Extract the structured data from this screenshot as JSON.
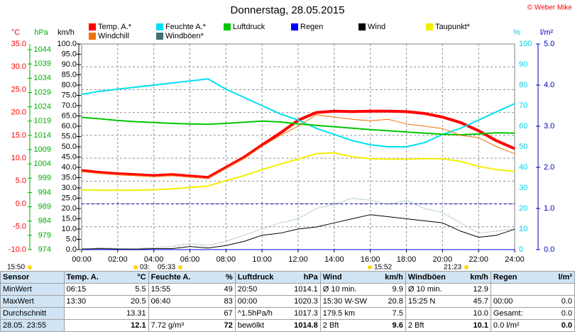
{
  "chart_data": {
    "type": "line",
    "title": "Donnerstag, 28.05.2015",
    "copyright": "© Weber Mike",
    "x": [
      0,
      1,
      2,
      3,
      4,
      5,
      6,
      7,
      8,
      9,
      10,
      11,
      12,
      13,
      14,
      15,
      16,
      17,
      18,
      19,
      20,
      21,
      22,
      23,
      24
    ],
    "xlim": [
      0,
      24
    ],
    "xticks": [
      {
        "value": 0,
        "label": "00:00"
      },
      {
        "value": 2,
        "label": "02:00"
      },
      {
        "value": 4,
        "label": "04:00"
      },
      {
        "value": 6,
        "label": "06:00"
      },
      {
        "value": 8,
        "label": "08:00"
      },
      {
        "value": 10,
        "label": "10:00"
      },
      {
        "value": 12,
        "label": "12:00"
      },
      {
        "value": 14,
        "label": "14:00"
      },
      {
        "value": 16,
        "label": "16:00"
      },
      {
        "value": 18,
        "label": "18:00"
      },
      {
        "value": 20,
        "label": "20:00"
      },
      {
        "value": 22,
        "label": "22:00"
      },
      {
        "value": 24,
        "label": "24:00"
      }
    ],
    "grid": true,
    "axes": {
      "temp": {
        "label": "°C",
        "color": "#ff0000",
        "ylim": [
          -10,
          35
        ],
        "yticks": [
          {
            "value": -10,
            "label": "-10.0"
          },
          {
            "value": -5,
            "label": "-5.0"
          },
          {
            "value": 0,
            "label": "0.0"
          },
          {
            "value": 5,
            "label": "5.0"
          },
          {
            "value": 10,
            "label": "10.0"
          },
          {
            "value": 15,
            "label": "15.0"
          },
          {
            "value": 20,
            "label": "20.0"
          },
          {
            "value": 25,
            "label": "25.0"
          },
          {
            "value": 30,
            "label": "30.0"
          },
          {
            "value": 35,
            "label": "35.0"
          }
        ]
      },
      "press": {
        "label": "hPa",
        "color": "#00b000",
        "ylim": [
          974,
          1046
        ],
        "yticks": [
          974,
          979,
          984,
          989,
          994,
          999,
          1004,
          1009,
          1014,
          1019,
          1024,
          1029,
          1034,
          1039,
          1044
        ]
      },
      "wind": {
        "label": "km/h",
        "color": "#000000",
        "ylim": [
          0,
          100
        ],
        "yticks": [
          {
            "value": 0,
            "label": "0.0"
          },
          {
            "value": 5,
            "label": "5.0"
          },
          {
            "value": 10,
            "label": "10.0"
          },
          {
            "value": 15,
            "label": "15.0"
          },
          {
            "value": 20,
            "label": "20.0"
          },
          {
            "value": 25,
            "label": "25.0"
          },
          {
            "value": 30,
            "label": "30.0"
          },
          {
            "value": 35,
            "label": "35.0"
          },
          {
            "value": 40,
            "label": "40.0"
          },
          {
            "value": 45,
            "label": "45.0"
          },
          {
            "value": 50,
            "label": "50.0"
          },
          {
            "value": 55,
            "label": "55.0"
          },
          {
            "value": 60,
            "label": "60.0"
          },
          {
            "value": 65,
            "label": "65.0"
          },
          {
            "value": 70,
            "label": "70.0"
          },
          {
            "value": 75,
            "label": "75.0"
          },
          {
            "value": 80,
            "label": "80.0"
          },
          {
            "value": 85,
            "label": "85.0"
          },
          {
            "value": 90,
            "label": "90.0"
          },
          {
            "value": 95,
            "label": "95.0"
          },
          {
            "value": 100,
            "label": "100.0"
          }
        ]
      },
      "hum": {
        "label": "%",
        "color": "#00d0e8",
        "ylim": [
          0,
          100
        ],
        "yticks": [
          0,
          10,
          20,
          30,
          40,
          50,
          60,
          70,
          80,
          90,
          100
        ]
      },
      "rain": {
        "label": "l/m²",
        "color": "#0000c0",
        "ylim": [
          0,
          5
        ],
        "yticks": [
          {
            "value": 0,
            "label": "0.0"
          },
          {
            "value": 1,
            "label": "1.0"
          },
          {
            "value": 2,
            "label": "2.0"
          },
          {
            "value": 3,
            "label": "3.0"
          },
          {
            "value": 4,
            "label": "4.0"
          },
          {
            "value": 5,
            "label": "5.0"
          }
        ]
      }
    },
    "reference_lines": [
      {
        "axis": "temp",
        "value": 0,
        "color": "#0000c0"
      }
    ],
    "series": [
      {
        "name": "Temp. A.*",
        "color": "#ff0000",
        "axis": "temp",
        "line_width": 4,
        "values": [
          7.3,
          6.9,
          6.6,
          6.4,
          6.2,
          6.4,
          6.1,
          5.8,
          8.0,
          10.2,
          12.9,
          15.5,
          18.3,
          20.0,
          20.3,
          20.2,
          20.3,
          20.3,
          20.2,
          19.8,
          19.0,
          17.8,
          16.0,
          13.8,
          12.1
        ]
      },
      {
        "name": "Feuchte A.*",
        "color": "#00e0f0",
        "axis": "hum",
        "line_width": 2,
        "values": [
          75.5,
          77,
          78,
          79,
          80,
          81,
          82,
          83,
          78,
          74,
          70,
          66,
          63,
          59,
          56,
          53,
          51,
          50,
          50,
          52,
          56,
          59,
          63,
          67,
          71
        ]
      },
      {
        "name": "Luftdruck",
        "color": "#00c800",
        "axis": "press",
        "line_width": 2,
        "values": [
          1020.3,
          1019.8,
          1019.2,
          1018.8,
          1018.5,
          1018.2,
          1018.0,
          1017.9,
          1018.2,
          1018.6,
          1019.0,
          1018.7,
          1018.0,
          1017.5,
          1017.0,
          1016.5,
          1016.0,
          1015.6,
          1015.2,
          1014.8,
          1014.4,
          1014.2,
          1014.5,
          1014.9,
          1014.8
        ]
      },
      {
        "name": "Regen",
        "color": "#0000ff",
        "axis": "rain",
        "line_width": 1,
        "values": [
          0,
          0,
          0,
          0,
          0,
          0,
          0,
          0,
          0,
          0,
          0,
          0,
          0,
          0,
          0,
          0,
          0,
          0,
          0,
          0,
          0,
          0,
          0,
          0,
          0
        ]
      },
      {
        "name": "Wind",
        "color": "#000000",
        "axis": "wind",
        "line_width": 1,
        "values": [
          0.3,
          0.5,
          0.3,
          0.2,
          0.5,
          0.5,
          1.5,
          0.8,
          2,
          4,
          7,
          8,
          10,
          11,
          13,
          15,
          17,
          16,
          15,
          14,
          13,
          9,
          6,
          7,
          9.9
        ]
      },
      {
        "name": "Taupunkt*",
        "color": "#f0f000",
        "axis": "temp",
        "line_width": 2,
        "values": [
          3.1,
          3.0,
          3.0,
          3.0,
          3.1,
          3.3,
          3.6,
          3.9,
          5.1,
          6.2,
          7.5,
          8.7,
          9.8,
          11.0,
          11.2,
          10.3,
          9.9,
          9.8,
          9.8,
          9.9,
          9.9,
          9.3,
          8.2,
          7.5,
          7.1
        ]
      },
      {
        "name": "Windchill",
        "color": "#f07000",
        "axis": "temp",
        "line_width": 1,
        "values": [
          7.1,
          6.7,
          6.4,
          6.2,
          6.0,
          6.2,
          5.9,
          5.6,
          7.8,
          10.0,
          12.6,
          15.0,
          17.0,
          19.5,
          19.0,
          18.5,
          18.2,
          18.5,
          17.5,
          17.0,
          16.5,
          15.0,
          14.5,
          12.5,
          11.0
        ]
      },
      {
        "name": "Windböen*",
        "color": "#407070",
        "axis": "wind",
        "line_width": 1,
        "style": "dotted",
        "values": [
          0,
          1,
          0.5,
          0.5,
          1,
          1.5,
          3,
          2,
          4,
          7,
          10,
          13,
          15,
          20,
          22,
          25,
          24,
          22,
          24,
          20,
          18,
          13,
          8,
          9,
          10.1
        ]
      }
    ],
    "sun_moon_times": [
      "15:50",
      "03:",
      "05:33",
      "15:52",
      "21:23"
    ]
  },
  "table": {
    "header": [
      [
        "Sensor",
        null
      ],
      [
        "Temp. A.",
        "°C"
      ],
      [
        "Feuchte A.",
        "%"
      ],
      [
        "Luftdruck",
        "hPa"
      ],
      [
        "Wind",
        "km/h"
      ],
      [
        "Windböen",
        "km/h"
      ],
      [
        "Regen",
        "l/m²"
      ]
    ],
    "rows": [
      {
        "label": "MinWert",
        "cells": [
          [
            "06:15",
            "5.5"
          ],
          [
            "15:55",
            "49"
          ],
          [
            "20:50",
            "1014.1"
          ],
          [
            "Ø 10 min.",
            "9.9"
          ],
          [
            "Ø 10 min.",
            "12.9"
          ],
          [
            null,
            null
          ]
        ]
      },
      {
        "label": "MaxWert",
        "cells": [
          [
            "13:30",
            "20.5"
          ],
          [
            "06:40",
            "83"
          ],
          [
            "00:00",
            "1020.3"
          ],
          [
            "15:30   W-SW",
            "20.8"
          ],
          [
            "15:25   N",
            "45.7"
          ],
          [
            "00:00",
            "0.0"
          ]
        ]
      },
      {
        "label": "Durchschnitt",
        "cells": [
          [
            null,
            "13.31"
          ],
          [
            null,
            "67"
          ],
          [
            "^1.5hPa/h",
            "1017.3"
          ],
          [
            "179.5 km",
            "7.5"
          ],
          [
            null,
            "10.0"
          ],
          [
            "Gesamt:",
            "0.0"
          ]
        ]
      },
      {
        "label": "28.05. 23:55",
        "cells": [
          [
            null,
            "12.1"
          ],
          [
            "7.72 g/m³",
            "72"
          ],
          [
            "bewölkt",
            "1014.8"
          ],
          [
            "2 Bft",
            "9.6"
          ],
          [
            "2 Bft",
            "10.1"
          ],
          [
            "0.0 l/m²",
            "0.0"
          ]
        ]
      }
    ]
  }
}
